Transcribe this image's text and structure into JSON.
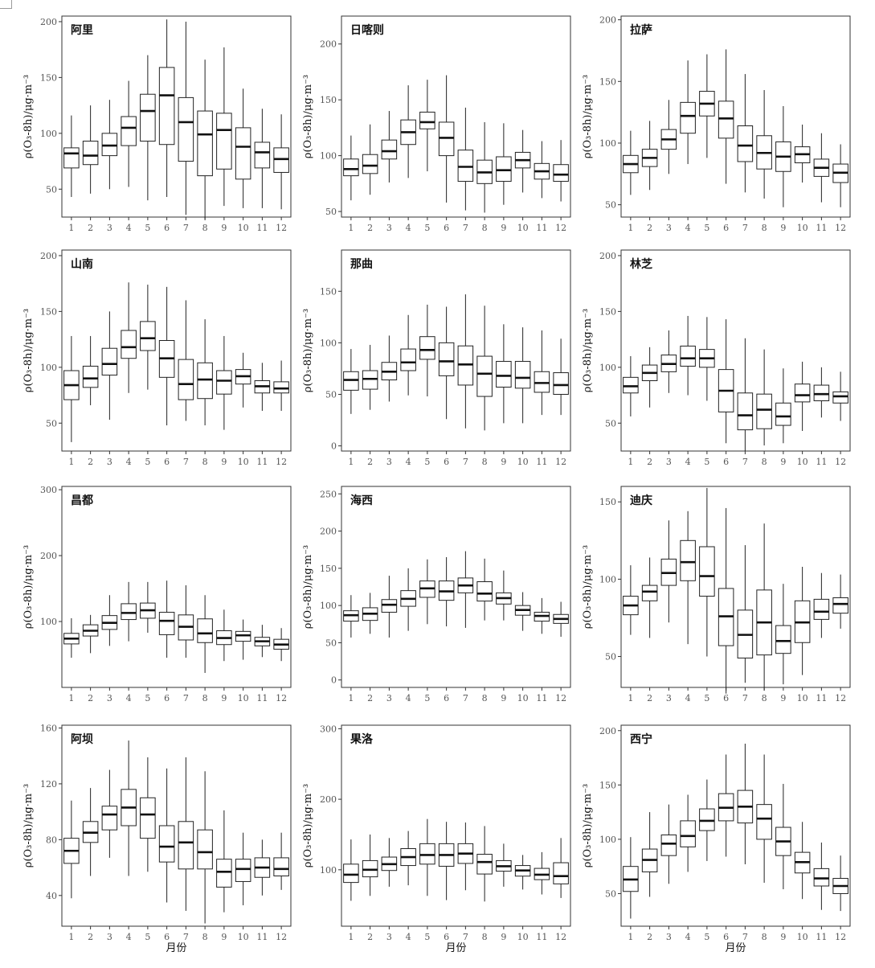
{
  "figure": {
    "ylabel": "ρ(O₃-8h)/μg·m⁻³",
    "xlabel": "月份",
    "months": [
      "1",
      "2",
      "3",
      "4",
      "5",
      "6",
      "7",
      "8",
      "9",
      "10",
      "11",
      "12"
    ]
  },
  "chart_data": [
    {
      "type": "box",
      "title": "阿里",
      "ylim": [
        25,
        205
      ],
      "yticks": [
        50,
        100,
        150,
        200
      ],
      "boxes": [
        [
          43,
          69,
          82,
          87,
          116
        ],
        [
          46,
          72,
          80,
          93,
          125
        ],
        [
          50,
          80,
          89,
          100,
          130
        ],
        [
          52,
          89,
          105,
          115,
          147
        ],
        [
          40,
          93,
          120,
          135,
          170
        ],
        [
          43,
          90,
          134,
          159,
          202
        ],
        [
          27,
          75,
          110,
          132,
          200
        ],
        [
          23,
          62,
          99,
          120,
          166
        ],
        [
          35,
          68,
          103,
          118,
          177
        ],
        [
          33,
          59,
          88,
          105,
          140
        ],
        [
          33,
          69,
          83,
          92,
          122
        ],
        [
          32,
          65,
          77,
          87,
          117
        ]
      ]
    },
    {
      "type": "box",
      "title": "日喀则",
      "ylim": [
        45,
        225
      ],
      "yticks": [
        50,
        100,
        150,
        200
      ],
      "boxes": [
        [
          60,
          82,
          88,
          97,
          118
        ],
        [
          65,
          84,
          91,
          101,
          128
        ],
        [
          76,
          97,
          104,
          114,
          140
        ],
        [
          80,
          110,
          121,
          132,
          163
        ],
        [
          86,
          124,
          130,
          139,
          168
        ],
        [
          58,
          100,
          116,
          130,
          172
        ],
        [
          51,
          77,
          90,
          105,
          143
        ],
        [
          49,
          75,
          85,
          96,
          130
        ],
        [
          56,
          77,
          87,
          99,
          129
        ],
        [
          67,
          89,
          96,
          103,
          123
        ],
        [
          62,
          79,
          86,
          93,
          113
        ],
        [
          59,
          77,
          83,
          92,
          114
        ]
      ]
    },
    {
      "type": "box",
      "title": "拉萨",
      "ylim": [
        40,
        203
      ],
      "yticks": [
        50,
        100,
        150,
        200
      ],
      "boxes": [
        [
          58,
          76,
          83,
          90,
          110
        ],
        [
          62,
          81,
          88,
          95,
          118
        ],
        [
          75,
          95,
          103,
          111,
          135
        ],
        [
          83,
          108,
          122,
          133,
          167
        ],
        [
          88,
          122,
          132,
          142,
          172
        ],
        [
          67,
          104,
          120,
          134,
          176
        ],
        [
          60,
          85,
          98,
          114,
          156
        ],
        [
          55,
          79,
          92,
          106,
          143
        ],
        [
          48,
          77,
          89,
          101,
          130
        ],
        [
          68,
          84,
          91,
          97,
          115
        ],
        [
          52,
          73,
          80,
          87,
          108
        ],
        [
          48,
          68,
          76,
          83,
          99
        ]
      ]
    },
    {
      "type": "box",
      "title": "山南",
      "ylim": [
        25,
        205
      ],
      "yticks": [
        50,
        100,
        150,
        200
      ],
      "boxes": [
        [
          33,
          71,
          84,
          97,
          128
        ],
        [
          66,
          82,
          90,
          101,
          128
        ],
        [
          53,
          93,
          103,
          117,
          150
        ],
        [
          77,
          108,
          118,
          133,
          176
        ],
        [
          80,
          115,
          126,
          141,
          174
        ],
        [
          48,
          91,
          108,
          124,
          172
        ],
        [
          52,
          71,
          85,
          107,
          160
        ],
        [
          48,
          72,
          89,
          104,
          143
        ],
        [
          44,
          76,
          88,
          97,
          128
        ],
        [
          64,
          85,
          92,
          98,
          113
        ],
        [
          61,
          77,
          83,
          88,
          104
        ],
        [
          61,
          77,
          81,
          87,
          106
        ]
      ]
    },
    {
      "type": "box",
      "title": "那曲",
      "ylim": [
        -5,
        190
      ],
      "yticks": [
        0,
        50,
        100,
        150
      ],
      "boxes": [
        [
          31,
          54,
          64,
          72,
          94
        ],
        [
          35,
          55,
          65,
          73,
          98
        ],
        [
          43,
          64,
          72,
          81,
          107
        ],
        [
          49,
          73,
          81,
          94,
          127
        ],
        [
          48,
          84,
          93,
          106,
          137
        ],
        [
          26,
          68,
          82,
          100,
          135
        ],
        [
          17,
          59,
          79,
          97,
          147
        ],
        [
          15,
          48,
          70,
          87,
          136
        ],
        [
          22,
          57,
          68,
          82,
          118
        ],
        [
          22,
          56,
          66,
          82,
          115
        ],
        [
          30,
          52,
          61,
          72,
          112
        ],
        [
          30,
          50,
          59,
          71,
          104
        ]
      ]
    },
    {
      "type": "box",
      "title": "林芝",
      "ylim": [
        25,
        205
      ],
      "yticks": [
        50,
        100,
        150,
        200
      ],
      "boxes": [
        [
          56,
          77,
          83,
          91,
          110
        ],
        [
          64,
          88,
          95,
          102,
          118
        ],
        [
          77,
          96,
          103,
          111,
          133
        ],
        [
          75,
          101,
          108,
          119,
          146
        ],
        [
          70,
          100,
          108,
          116,
          145
        ],
        [
          32,
          60,
          79,
          98,
          143
        ],
        [
          25,
          44,
          57,
          77,
          126
        ],
        [
          30,
          45,
          62,
          76,
          116
        ],
        [
          32,
          48,
          56,
          68,
          99
        ],
        [
          43,
          69,
          75,
          85,
          105
        ],
        [
          55,
          70,
          76,
          84,
          100
        ],
        [
          52,
          68,
          74,
          78,
          96
        ]
      ]
    },
    {
      "type": "box",
      "title": "昌都",
      "ylim": [
        0,
        305
      ],
      "yticks": [
        100,
        200,
        300
      ],
      "boxes": [
        [
          45,
          66,
          74,
          82,
          105
        ],
        [
          52,
          78,
          86,
          95,
          110
        ],
        [
          63,
          88,
          98,
          109,
          140
        ],
        [
          70,
          103,
          113,
          127,
          160
        ],
        [
          83,
          105,
          117,
          128,
          160
        ],
        [
          45,
          80,
          101,
          114,
          162
        ],
        [
          45,
          72,
          92,
          110,
          155
        ],
        [
          22,
          68,
          82,
          104,
          140
        ],
        [
          40,
          65,
          75,
          86,
          118
        ],
        [
          42,
          70,
          79,
          85,
          103
        ],
        [
          46,
          63,
          70,
          76,
          95
        ],
        [
          40,
          58,
          65,
          73,
          90
        ]
      ]
    },
    {
      "type": "box",
      "title": "海西",
      "ylim": [
        -10,
        260
      ],
      "yticks": [
        0,
        50,
        100,
        150,
        200,
        250
      ],
      "boxes": [
        [
          57,
          79,
          87,
          93,
          114
        ],
        [
          62,
          80,
          89,
          97,
          117
        ],
        [
          57,
          91,
          101,
          108,
          140
        ],
        [
          66,
          99,
          109,
          120,
          150
        ],
        [
          75,
          111,
          123,
          133,
          162
        ],
        [
          72,
          107,
          119,
          133,
          165
        ],
        [
          70,
          117,
          127,
          137,
          173
        ],
        [
          80,
          106,
          116,
          132,
          163
        ],
        [
          80,
          102,
          110,
          117,
          147
        ],
        [
          66,
          87,
          94,
          100,
          118
        ],
        [
          62,
          79,
          86,
          91,
          110
        ],
        [
          58,
          76,
          82,
          88,
          105
        ]
      ]
    },
    {
      "type": "box",
      "title": "迪庆",
      "ylim": [
        30,
        160
      ],
      "yticks": [
        50,
        100,
        150
      ],
      "boxes": [
        [
          64,
          77,
          83,
          89,
          109
        ],
        [
          62,
          86,
          92,
          96,
          114
        ],
        [
          72,
          96,
          104,
          113,
          138
        ],
        [
          58,
          99,
          111,
          125,
          144
        ],
        [
          50,
          89,
          102,
          121,
          159
        ],
        [
          26,
          57,
          76,
          94,
          146
        ],
        [
          33,
          49,
          64,
          80,
          122
        ],
        [
          28,
          51,
          72,
          93,
          136
        ],
        [
          32,
          52,
          60,
          70,
          97
        ],
        [
          38,
          59,
          72,
          86,
          108
        ],
        [
          62,
          74,
          79,
          87,
          104
        ],
        [
          68,
          78,
          84,
          88,
          103
        ]
      ]
    },
    {
      "type": "box",
      "title": "阿坝",
      "ylim": [
        18,
        162
      ],
      "yticks": [
        40,
        80,
        120,
        160
      ],
      "boxes": [
        [
          38,
          63,
          72,
          81,
          108
        ],
        [
          54,
          78,
          85,
          93,
          117
        ],
        [
          67,
          87,
          98,
          104,
          130
        ],
        [
          54,
          90,
          103,
          116,
          151
        ],
        [
          57,
          81,
          98,
          110,
          139
        ],
        [
          35,
          64,
          75,
          90,
          131
        ],
        [
          29,
          59,
          78,
          93,
          139
        ],
        [
          20,
          59,
          71,
          87,
          129
        ],
        [
          28,
          46,
          57,
          66,
          101
        ],
        [
          33,
          50,
          59,
          66,
          85
        ],
        [
          40,
          53,
          60,
          67,
          80
        ],
        [
          44,
          54,
          59,
          67,
          85
        ]
      ]
    },
    {
      "type": "box",
      "title": "果洛",
      "ylim": [
        20,
        305
      ],
      "yticks": [
        100,
        200,
        300
      ],
      "boxes": [
        [
          56,
          82,
          93,
          108,
          143
        ],
        [
          63,
          90,
          100,
          113,
          150
        ],
        [
          76,
          99,
          108,
          118,
          145
        ],
        [
          78,
          106,
          118,
          130,
          155
        ],
        [
          63,
          108,
          121,
          137,
          172
        ],
        [
          57,
          105,
          121,
          137,
          168
        ],
        [
          71,
          109,
          123,
          137,
          167
        ],
        [
          55,
          94,
          111,
          122,
          162
        ],
        [
          76,
          98,
          105,
          113,
          137
        ],
        [
          72,
          91,
          99,
          106,
          121
        ],
        [
          65,
          86,
          93,
          102,
          125
        ],
        [
          60,
          80,
          91,
          110,
          145
        ]
      ]
    },
    {
      "type": "box",
      "title": "西宁",
      "ylim": [
        20,
        205
      ],
      "yticks": [
        50,
        100,
        150,
        200
      ],
      "boxes": [
        [
          27,
          52,
          63,
          75,
          102
        ],
        [
          47,
          70,
          81,
          91,
          125
        ],
        [
          59,
          85,
          96,
          104,
          132
        ],
        [
          70,
          93,
          103,
          117,
          141
        ],
        [
          80,
          108,
          117,
          128,
          155
        ],
        [
          84,
          117,
          129,
          142,
          178
        ],
        [
          77,
          115,
          130,
          145,
          188
        ],
        [
          60,
          100,
          119,
          132,
          178
        ],
        [
          54,
          85,
          98,
          111,
          151
        ],
        [
          45,
          69,
          79,
          88,
          116
        ],
        [
          35,
          57,
          64,
          73,
          97
        ],
        [
          34,
          50,
          57,
          64,
          85
        ]
      ]
    }
  ]
}
